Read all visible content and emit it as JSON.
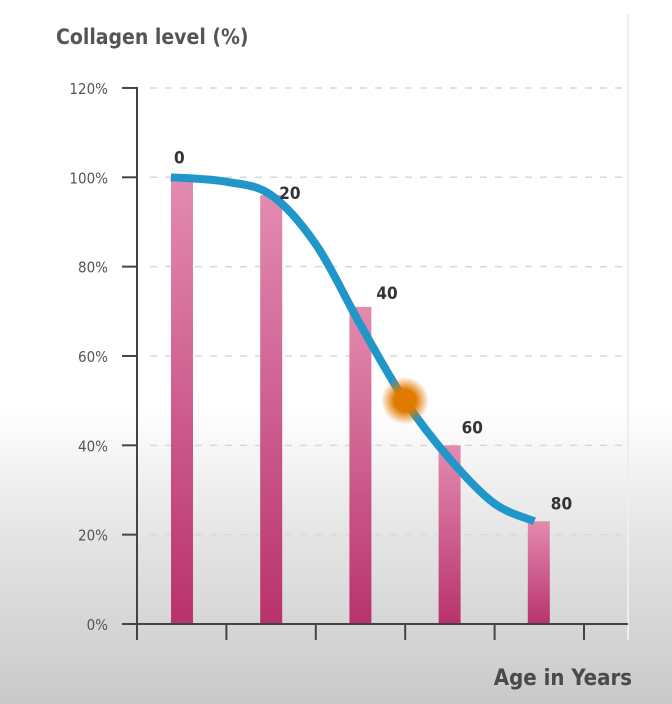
{
  "chart_data": {
    "type": "bar",
    "title": "",
    "ylabel": "Collagen level (%)",
    "xlabel": "Age in Years",
    "ylim": [
      0,
      120
    ],
    "yticks": [
      "0%",
      "20%",
      "40%",
      "60%",
      "80%",
      "100%",
      "120%"
    ],
    "ytick_values": [
      0,
      20,
      40,
      60,
      80,
      100,
      120
    ],
    "grid": true,
    "categories": [
      "0",
      "20",
      "40",
      "60",
      "80"
    ],
    "x": [
      0,
      20,
      40,
      60,
      80
    ],
    "values": [
      100,
      96,
      71,
      40,
      23
    ],
    "trend_line": {
      "x": [
        -2.5,
        10,
        20,
        30,
        40,
        50,
        60,
        70,
        79
      ],
      "y": [
        100,
        99,
        96,
        85,
        67,
        50,
        37,
        27,
        23
      ]
    },
    "highlight_point": {
      "x": 50,
      "y": 50
    },
    "colors": {
      "bar_top": "#e38bb0",
      "bar_bottom": "#b8326c",
      "line": "#2196c9",
      "highlight": "#e07a00",
      "axis": "#444444",
      "grid": "#d8d8d8"
    }
  }
}
